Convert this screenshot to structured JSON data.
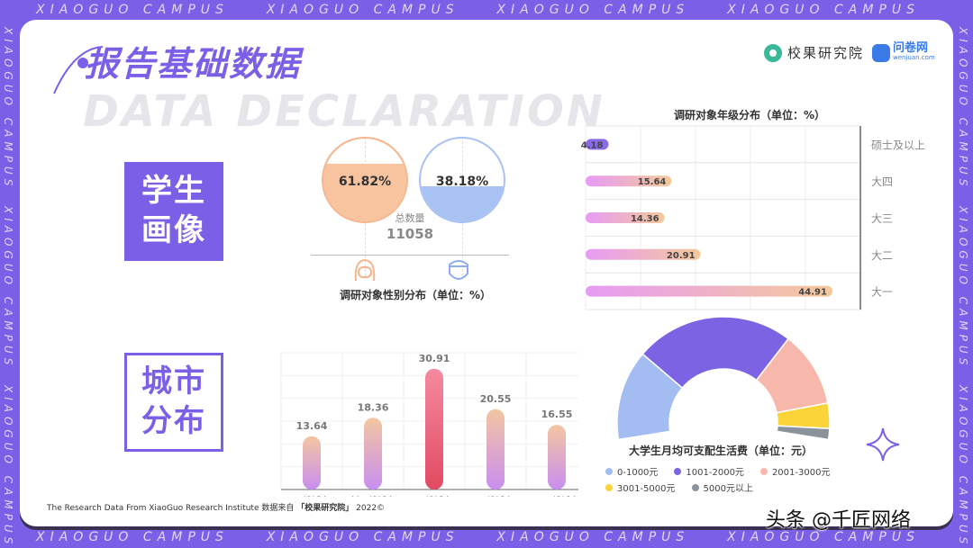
{
  "frame": {
    "text": "XIAOGUO    CAMPUS",
    "vertical": "XIAOGUO CAMPUS"
  },
  "header": {
    "title": "报告基础数据",
    "bg_title": "DATA DECLARATION",
    "logo1": "校果研究院",
    "logo2": "问卷网",
    "logo2_sub": "wenjuan.com",
    "logo1_icon": "ring-icon",
    "logo2_icon": "cat-icon"
  },
  "sections": {
    "student": [
      "学生",
      "画像"
    ],
    "city": [
      "城市",
      "分布"
    ]
  },
  "gender": {
    "female_pct": "61.82%",
    "male_pct": "38.18%",
    "female_value": 61.82,
    "male_value": 38.18,
    "total_label": "总数量",
    "total": "11058",
    "caption": "调研对象性别分布（单位：%）",
    "colors": {
      "female": "#f8c4a0",
      "male": "#a9c2f4"
    }
  },
  "chart_data": [
    {
      "type": "bar",
      "orientation": "horizontal",
      "title": "调研对象年级分布（单位：%）",
      "categories": [
        "硕士及以上",
        "大四",
        "大三",
        "大二",
        "大一"
      ],
      "values": [
        4.18,
        15.64,
        14.36,
        20.91,
        44.91
      ],
      "labels": [
        "4.18",
        "15.64",
        "14.36",
        "20.91",
        "44.91"
      ],
      "xlim": [
        0,
        50
      ],
      "grid": true
    },
    {
      "type": "bar",
      "orientation": "vertical",
      "title": "",
      "categories": [
        "一线城市",
        "新一线城市",
        "二线城市",
        "三线城市",
        "四五线城市"
      ],
      "values": [
        13.64,
        18.36,
        30.91,
        20.55,
        16.55
      ],
      "labels": [
        "13.64",
        "18.36",
        "30.91",
        "20.55",
        "16.55"
      ],
      "ylim": [
        0,
        35
      ],
      "grid": true
    },
    {
      "type": "pie",
      "variant": "half-donut",
      "title": "大学生月均可支配生活费（单位：元）",
      "categories": [
        "0-1000元",
        "1001-2000元",
        "2001-3000元",
        "3001-5000元",
        "5000元以上"
      ],
      "values": [
        25,
        44,
        21,
        7,
        3
      ],
      "colors": [
        "#a3bdf2",
        "#7b63e3",
        "#f7b8ab",
        "#fbd43a",
        "#8a929c"
      ],
      "legend": "bottom"
    }
  ],
  "footer": {
    "prefix": "The Research Data From XiaoGuo Research Institute 数据来自",
    "source": "「校果研究院」",
    "year": "2022©"
  },
  "watermark": "头条 @千匠网络"
}
